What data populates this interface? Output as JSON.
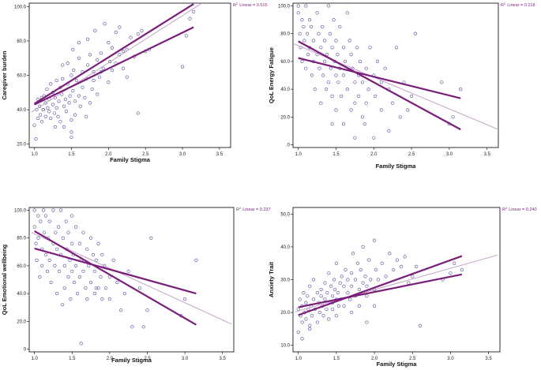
{
  "chart_data": [
    {
      "type": "scatter",
      "xlabel": "Family Stigma",
      "ylabel": "Caregiver burden",
      "xticks": [
        "1.0",
        "1.5",
        "2.0",
        "2.5",
        "3.0",
        "3.5"
      ],
      "yticks": [
        "20.0",
        "40.0",
        "60.0",
        "80.0",
        "100.0"
      ],
      "xlim": [
        0.93,
        3.65
      ],
      "ylim": [
        18,
        102
      ],
      "r2_label": "R",
      "r2_sup": "2",
      "r2_text": "Linear = 0.515",
      "fit_line": {
        "x": [
          0.96,
          3.28
        ],
        "y": [
          38.6,
          102.5
        ]
      },
      "ci_upper": {
        "x": [
          1.0,
          3.15
        ],
        "y": [
          43.5,
          101.5
        ]
      },
      "ci_lower": {
        "x": [
          1.0,
          3.15
        ],
        "y": [
          43.0,
          88.0
        ]
      },
      "points": {
        "x": [
          1.0,
          1.02,
          1.03,
          1.05,
          1.05,
          1.07,
          1.08,
          1.1,
          1.1,
          1.12,
          1.13,
          1.15,
          1.15,
          1.17,
          1.18,
          1.2,
          1.2,
          1.22,
          1.22,
          1.25,
          1.25,
          1.27,
          1.28,
          1.3,
          1.3,
          1.32,
          1.33,
          1.35,
          1.35,
          1.37,
          1.38,
          1.4,
          1.4,
          1.42,
          1.43,
          1.45,
          1.45,
          1.47,
          1.48,
          1.5,
          1.5,
          1.5,
          1.52,
          1.53,
          1.55,
          1.55,
          1.57,
          1.6,
          1.6,
          1.62,
          1.65,
          1.65,
          1.68,
          1.7,
          1.7,
          1.72,
          1.75,
          1.75,
          1.78,
          1.8,
          1.8,
          1.82,
          1.85,
          1.85,
          1.88,
          1.9,
          1.9,
          1.93,
          1.95,
          2.0,
          2.0,
          2.02,
          2.05,
          2.05,
          2.1,
          2.1,
          2.15,
          2.15,
          2.2,
          2.2,
          2.25,
          2.25,
          2.3,
          2.35,
          2.4,
          2.4,
          2.45,
          2.5,
          2.55,
          3.0,
          3.05,
          3.1,
          3.15,
          1.12,
          1.28,
          1.38,
          1.5,
          1.52,
          1.6,
          1.72
        ],
        "y": [
          31,
          23,
          40,
          46,
          35,
          42,
          37,
          47,
          33,
          40,
          48,
          44,
          36,
          52,
          41,
          39,
          46,
          55,
          35,
          43,
          50,
          38,
          47,
          57,
          41,
          36,
          45,
          53,
          33,
          49,
          58,
          42,
          30,
          46,
          39,
          67,
          55,
          44,
          48,
          34,
          60,
          27,
          51,
          63,
          45,
          37,
          57,
          48,
          70,
          42,
          62,
          53,
          47,
          58,
          36,
          66,
          44,
          72,
          52,
          62,
          57,
          86,
          49,
          69,
          59,
          62,
          73,
          64,
          90,
          56,
          79,
          68,
          63,
          76,
          67,
          85,
          72,
          88,
          74,
          64,
          59,
          75,
          82,
          71,
          38,
          84,
          86,
          74,
          75,
          65,
          83,
          93,
          97,
          40,
          30,
          66,
          24,
          75,
          79,
          81
        ]
      }
    },
    {
      "type": "scatter",
      "xlabel": "Family Stigma",
      "ylabel": "QoL Energy Fatigue",
      "xticks": [
        "1.0",
        "1.5",
        "2.0",
        "2.5",
        "3.0",
        "3.5"
      ],
      "yticks": [
        ".0",
        "20.0",
        "40.0",
        "60.0",
        "80.0",
        "100.0"
      ],
      "xlim": [
        0.93,
        3.65
      ],
      "ylim": [
        -2,
        102
      ],
      "r2_label": "R",
      "r2_sup": "2",
      "r2_text": "Linear = 0.218",
      "fit_line": {
        "x": [
          0.93,
          3.65
        ],
        "y": [
          73.0,
          11.0
        ]
      },
      "ci_upper": {
        "x": [
          1.0,
          3.15
        ],
        "y": [
          62.5,
          33.5
        ]
      },
      "ci_lower": {
        "x": [
          1.0,
          3.15
        ],
        "y": [
          74.5,
          11.0
        ]
      },
      "points": {
        "x": [
          1.0,
          1.0,
          1.02,
          1.03,
          1.05,
          1.05,
          1.07,
          1.08,
          1.1,
          1.1,
          1.12,
          1.13,
          1.15,
          1.15,
          1.17,
          1.18,
          1.2,
          1.2,
          1.22,
          1.25,
          1.25,
          1.27,
          1.28,
          1.3,
          1.3,
          1.32,
          1.33,
          1.35,
          1.35,
          1.37,
          1.38,
          1.4,
          1.4,
          1.42,
          1.43,
          1.45,
          1.45,
          1.47,
          1.48,
          1.5,
          1.5,
          1.5,
          1.52,
          1.53,
          1.55,
          1.55,
          1.57,
          1.6,
          1.6,
          1.62,
          1.65,
          1.65,
          1.68,
          1.7,
          1.7,
          1.72,
          1.75,
          1.75,
          1.78,
          1.8,
          1.8,
          1.82,
          1.85,
          1.85,
          1.88,
          1.9,
          1.9,
          1.93,
          1.95,
          2.0,
          2.0,
          2.02,
          2.05,
          2.1,
          2.1,
          2.15,
          2.2,
          2.2,
          2.25,
          2.3,
          2.35,
          2.4,
          2.45,
          2.5,
          2.55,
          2.9,
          3.0,
          3.05,
          3.15,
          1.45,
          1.6,
          1.75
        ],
        "y": [
          100,
          95,
          80,
          70,
          90,
          60,
          85,
          75,
          100,
          55,
          80,
          65,
          90,
          70,
          85,
          50,
          75,
          60,
          40,
          95,
          65,
          80,
          55,
          70,
          30,
          85,
          50,
          75,
          60,
          40,
          65,
          100,
          45,
          80,
          55,
          70,
          35,
          90,
          60,
          50,
          75,
          25,
          65,
          45,
          85,
          55,
          35,
          70,
          50,
          60,
          95,
          40,
          75,
          25,
          65,
          55,
          45,
          30,
          70,
          50,
          35,
          60,
          20,
          45,
          15,
          55,
          30,
          40,
          70,
          50,
          5,
          35,
          60,
          45,
          25,
          55,
          10,
          40,
          30,
          70,
          20,
          45,
          25,
          35,
          80,
          45,
          15,
          20,
          40,
          15,
          15,
          5
        ]
      }
    },
    {
      "type": "scatter",
      "xlabel": "Family Stigma",
      "ylabel": "QoL Emotional wellbeing",
      "xticks": [
        "1.0",
        "1.5",
        "2.0",
        "2.5",
        "3.0",
        "3.5"
      ],
      "yticks": [
        "0",
        "20.0",
        "40.0",
        "60.0",
        "80.0",
        "100.0"
      ],
      "xlim": [
        0.93,
        3.65
      ],
      "ylim": [
        -2,
        102
      ],
      "r2_label": "R",
      "r2_sup": "2",
      "r2_text": "Linear = 0.237",
      "fit_line": {
        "x": [
          0.96,
          3.62
        ],
        "y": [
          84.0,
          18.0
        ]
      },
      "ci_upper": {
        "x": [
          1.0,
          3.15
        ],
        "y": [
          72.5,
          40.0
        ]
      },
      "ci_lower": {
        "x": [
          1.0,
          3.15
        ],
        "y": [
          85.0,
          17.5
        ]
      },
      "points": {
        "x": [
          1.0,
          1.0,
          1.02,
          1.03,
          1.05,
          1.05,
          1.07,
          1.08,
          1.1,
          1.1,
          1.12,
          1.13,
          1.15,
          1.15,
          1.17,
          1.18,
          1.2,
          1.2,
          1.22,
          1.25,
          1.25,
          1.27,
          1.28,
          1.3,
          1.3,
          1.32,
          1.33,
          1.35,
          1.35,
          1.37,
          1.38,
          1.4,
          1.4,
          1.42,
          1.43,
          1.45,
          1.45,
          1.47,
          1.48,
          1.5,
          1.5,
          1.5,
          1.52,
          1.53,
          1.55,
          1.55,
          1.57,
          1.6,
          1.6,
          1.62,
          1.65,
          1.65,
          1.68,
          1.7,
          1.7,
          1.72,
          1.75,
          1.75,
          1.78,
          1.8,
          1.8,
          1.82,
          1.85,
          1.85,
          1.88,
          1.9,
          1.9,
          1.93,
          1.95,
          2.0,
          2.0,
          2.05,
          2.1,
          2.15,
          2.2,
          2.25,
          2.3,
          2.4,
          2.5,
          2.55,
          2.95,
          3.0,
          3.15,
          1.62,
          1.82,
          2.45
        ],
        "y": [
          100,
          88,
          76,
          64,
          96,
          80,
          52,
          92,
          72,
          60,
          100,
          84,
          68,
          96,
          56,
          80,
          64,
          92,
          48,
          76,
          100,
          60,
          84,
          40,
          72,
          88,
          56,
          68,
          100,
          32,
          80,
          60,
          44,
          92,
          72,
          52,
          84,
          64,
          36,
          76,
          56,
          96,
          68,
          48,
          88,
          60,
          40,
          76,
          52,
          64,
          84,
          56,
          44,
          72,
          36,
          60,
          80,
          48,
          68,
          40,
          56,
          64,
          76,
          44,
          52,
          36,
          68,
          60,
          44,
          52,
          36,
          64,
          48,
          28,
          40,
          56,
          16,
          44,
          28,
          80,
          24,
          36,
          64,
          4,
          44,
          16
        ]
      }
    },
    {
      "type": "scatter",
      "xlabel": "Family Stigma",
      "ylabel": "Anxiety Trait",
      "xticks": [
        "1.0",
        "1.5",
        "2.0",
        "2.5",
        "3.0",
        "3.5"
      ],
      "yticks": [
        "10.0",
        "20.0",
        "30.0",
        "40.0",
        "50.0"
      ],
      "xlim": [
        0.93,
        3.65
      ],
      "ylim": [
        8,
        52
      ],
      "r2_label": "R",
      "r2_sup": "2",
      "r2_text": "Linear = 0.240",
      "fit_line": {
        "x": [
          0.96,
          3.62
        ],
        "y": [
          20.2,
          37.5
        ]
      },
      "ci_upper": {
        "x": [
          1.0,
          3.15
        ],
        "y": [
          19.2,
          37.2
        ]
      },
      "ci_lower": {
        "x": [
          1.0,
          3.15
        ],
        "y": [
          21.6,
          31.6
        ]
      },
      "points": {
        "x": [
          1.0,
          1.0,
          1.02,
          1.03,
          1.05,
          1.05,
          1.07,
          1.08,
          1.1,
          1.1,
          1.12,
          1.13,
          1.15,
          1.15,
          1.17,
          1.18,
          1.2,
          1.2,
          1.22,
          1.25,
          1.25,
          1.27,
          1.28,
          1.3,
          1.3,
          1.32,
          1.33,
          1.35,
          1.35,
          1.37,
          1.38,
          1.4,
          1.4,
          1.42,
          1.43,
          1.45,
          1.45,
          1.47,
          1.48,
          1.5,
          1.5,
          1.5,
          1.52,
          1.53,
          1.55,
          1.55,
          1.57,
          1.6,
          1.6,
          1.62,
          1.65,
          1.65,
          1.68,
          1.7,
          1.7,
          1.72,
          1.75,
          1.75,
          1.78,
          1.8,
          1.8,
          1.82,
          1.85,
          1.85,
          1.88,
          1.9,
          1.9,
          1.93,
          1.95,
          2.0,
          2.0,
          2.02,
          2.05,
          2.1,
          2.15,
          2.2,
          2.25,
          2.3,
          2.35,
          2.4,
          2.45,
          2.5,
          2.55,
          2.6,
          2.9,
          3.0,
          3.05,
          3.15,
          1.05,
          1.15,
          1.45,
          1.7,
          1.9,
          2.0
        ],
        "y": [
          21,
          14,
          24,
          19,
          22,
          17,
          26,
          20,
          23,
          18,
          25,
          21,
          16,
          28,
          22,
          19,
          24,
          30,
          21,
          17,
          26,
          23,
          20,
          27,
          25,
          22,
          19,
          29,
          24,
          21,
          26,
          18,
          32,
          23,
          28,
          25,
          21,
          30,
          27,
          24,
          19,
          35,
          26,
          22,
          29,
          24,
          31,
          28,
          22,
          33,
          26,
          30,
          24,
          32,
          28,
          38,
          25,
          30,
          35,
          27,
          22,
          33,
          29,
          40,
          31,
          25,
          28,
          36,
          30,
          42,
          27,
          33,
          30,
          35,
          31,
          38,
          33,
          36,
          34,
          37,
          29,
          31,
          34,
          16,
          30,
          32,
          35,
          33,
          12,
          15,
          23,
          20,
          17,
          22
        ]
      }
    }
  ],
  "colors": {
    "points": "#4a4a9a",
    "fit_line": "#c8a0c8",
    "ci_lines": "#7a1e7a",
    "r2_text": "#7a1e7a",
    "axis": "#000000"
  }
}
